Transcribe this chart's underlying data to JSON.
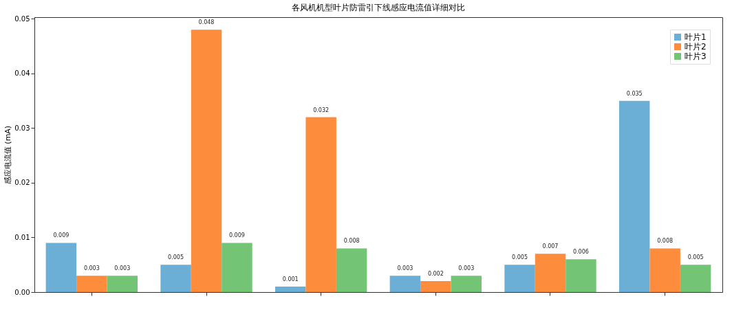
{
  "chart_data": {
    "type": "bar",
    "title": "各风机机型叶片防雷引下线感应电流值详细对比",
    "ylabel": "感应电流值 (mA)",
    "categories": [
      null,
      null,
      null,
      null,
      null,
      null
    ],
    "series": [
      {
        "name": "叶片1",
        "color": "#6baed6",
        "values": [
          0.009,
          0.005,
          0.001,
          0.003,
          0.005,
          0.035
        ]
      },
      {
        "name": "叶片2",
        "color": "#fd8d3c",
        "values": [
          0.003,
          0.048,
          0.032,
          0.002,
          0.007,
          0.008
        ]
      },
      {
        "name": "叶片3",
        "color": "#74c476",
        "values": [
          0.003,
          0.009,
          0.008,
          0.003,
          0.006,
          0.005
        ]
      }
    ],
    "ylim": [
      0,
      0.0503
    ],
    "yticks": [
      {
        "value": 0,
        "label": "0.00"
      },
      {
        "value": 0.01,
        "label": "0.01"
      },
      {
        "value": 0.02,
        "label": "0.02"
      },
      {
        "value": 0.03,
        "label": "0.03"
      },
      {
        "value": 0.04,
        "label": "0.04"
      },
      {
        "value": 0.05,
        "label": "0.05"
      }
    ],
    "grid": false,
    "legend": "top right",
    "data_labels": true
  }
}
